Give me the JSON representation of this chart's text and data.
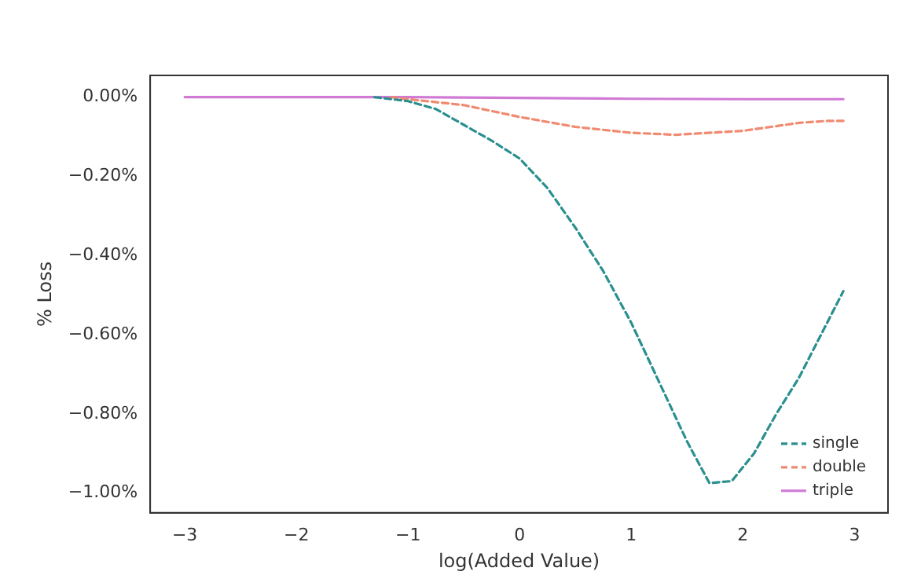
{
  "chart_data": {
    "type": "line",
    "xlabel": "log(Added Value)",
    "ylabel": "% Loss",
    "xlim": [
      -3.31,
      3.3
    ],
    "ylim": [
      -1.05,
      0.055
    ],
    "xticks": [
      {
        "value": -3,
        "label": "−3"
      },
      {
        "value": -2,
        "label": "−2"
      },
      {
        "value": -1,
        "label": "−1"
      },
      0,
      1,
      2,
      3
    ],
    "yticks": [
      {
        "value": 0,
        "label": "0.00%"
      },
      {
        "value": -0.2,
        "label": "−0.20%"
      },
      {
        "value": -0.4,
        "label": "−0.40%"
      },
      {
        "value": -0.6,
        "label": "−0.60%"
      },
      {
        "value": -0.8,
        "label": "−0.80%"
      },
      {
        "value": -1,
        "label": "−1.00%"
      }
    ],
    "grid": false,
    "legend": "bottom right",
    "marker": "none",
    "series": [
      {
        "name": "single",
        "color": "#2a8f8f",
        "line_style": "dashed",
        "x": [
          -1.3,
          -1,
          -0.75,
          -0.5,
          -0.25,
          0,
          0.25,
          0.5,
          0.75,
          1,
          1.25,
          1.5,
          1.7,
          1.9,
          2.1,
          2.3,
          2.5,
          2.7,
          2.9
        ],
        "values": [
          0,
          -0.01,
          -0.03,
          -0.07,
          -0.11,
          -0.155,
          -0.23,
          -0.33,
          -0.44,
          -0.57,
          -0.72,
          -0.87,
          -0.975,
          -0.97,
          -0.9,
          -0.8,
          -0.71,
          -0.6,
          -0.49
        ]
      },
      {
        "name": "double",
        "color": "#f08a70",
        "line_style": "dashed",
        "x": [
          -1.15,
          -1,
          -0.5,
          0,
          0.5,
          1,
          1.4,
          2,
          2.5,
          2.75,
          2.9
        ],
        "values": [
          0,
          -0.005,
          -0.02,
          -0.05,
          -0.075,
          -0.09,
          -0.095,
          -0.085,
          -0.065,
          -0.06,
          -0.06
        ]
      },
      {
        "name": "triple",
        "color": "#d07ad6",
        "line_style": "solid",
        "x": [
          -3,
          -1,
          0,
          1,
          2,
          2.9
        ],
        "values": [
          0,
          0,
          -0.002,
          -0.004,
          -0.005,
          -0.005
        ]
      }
    ]
  }
}
